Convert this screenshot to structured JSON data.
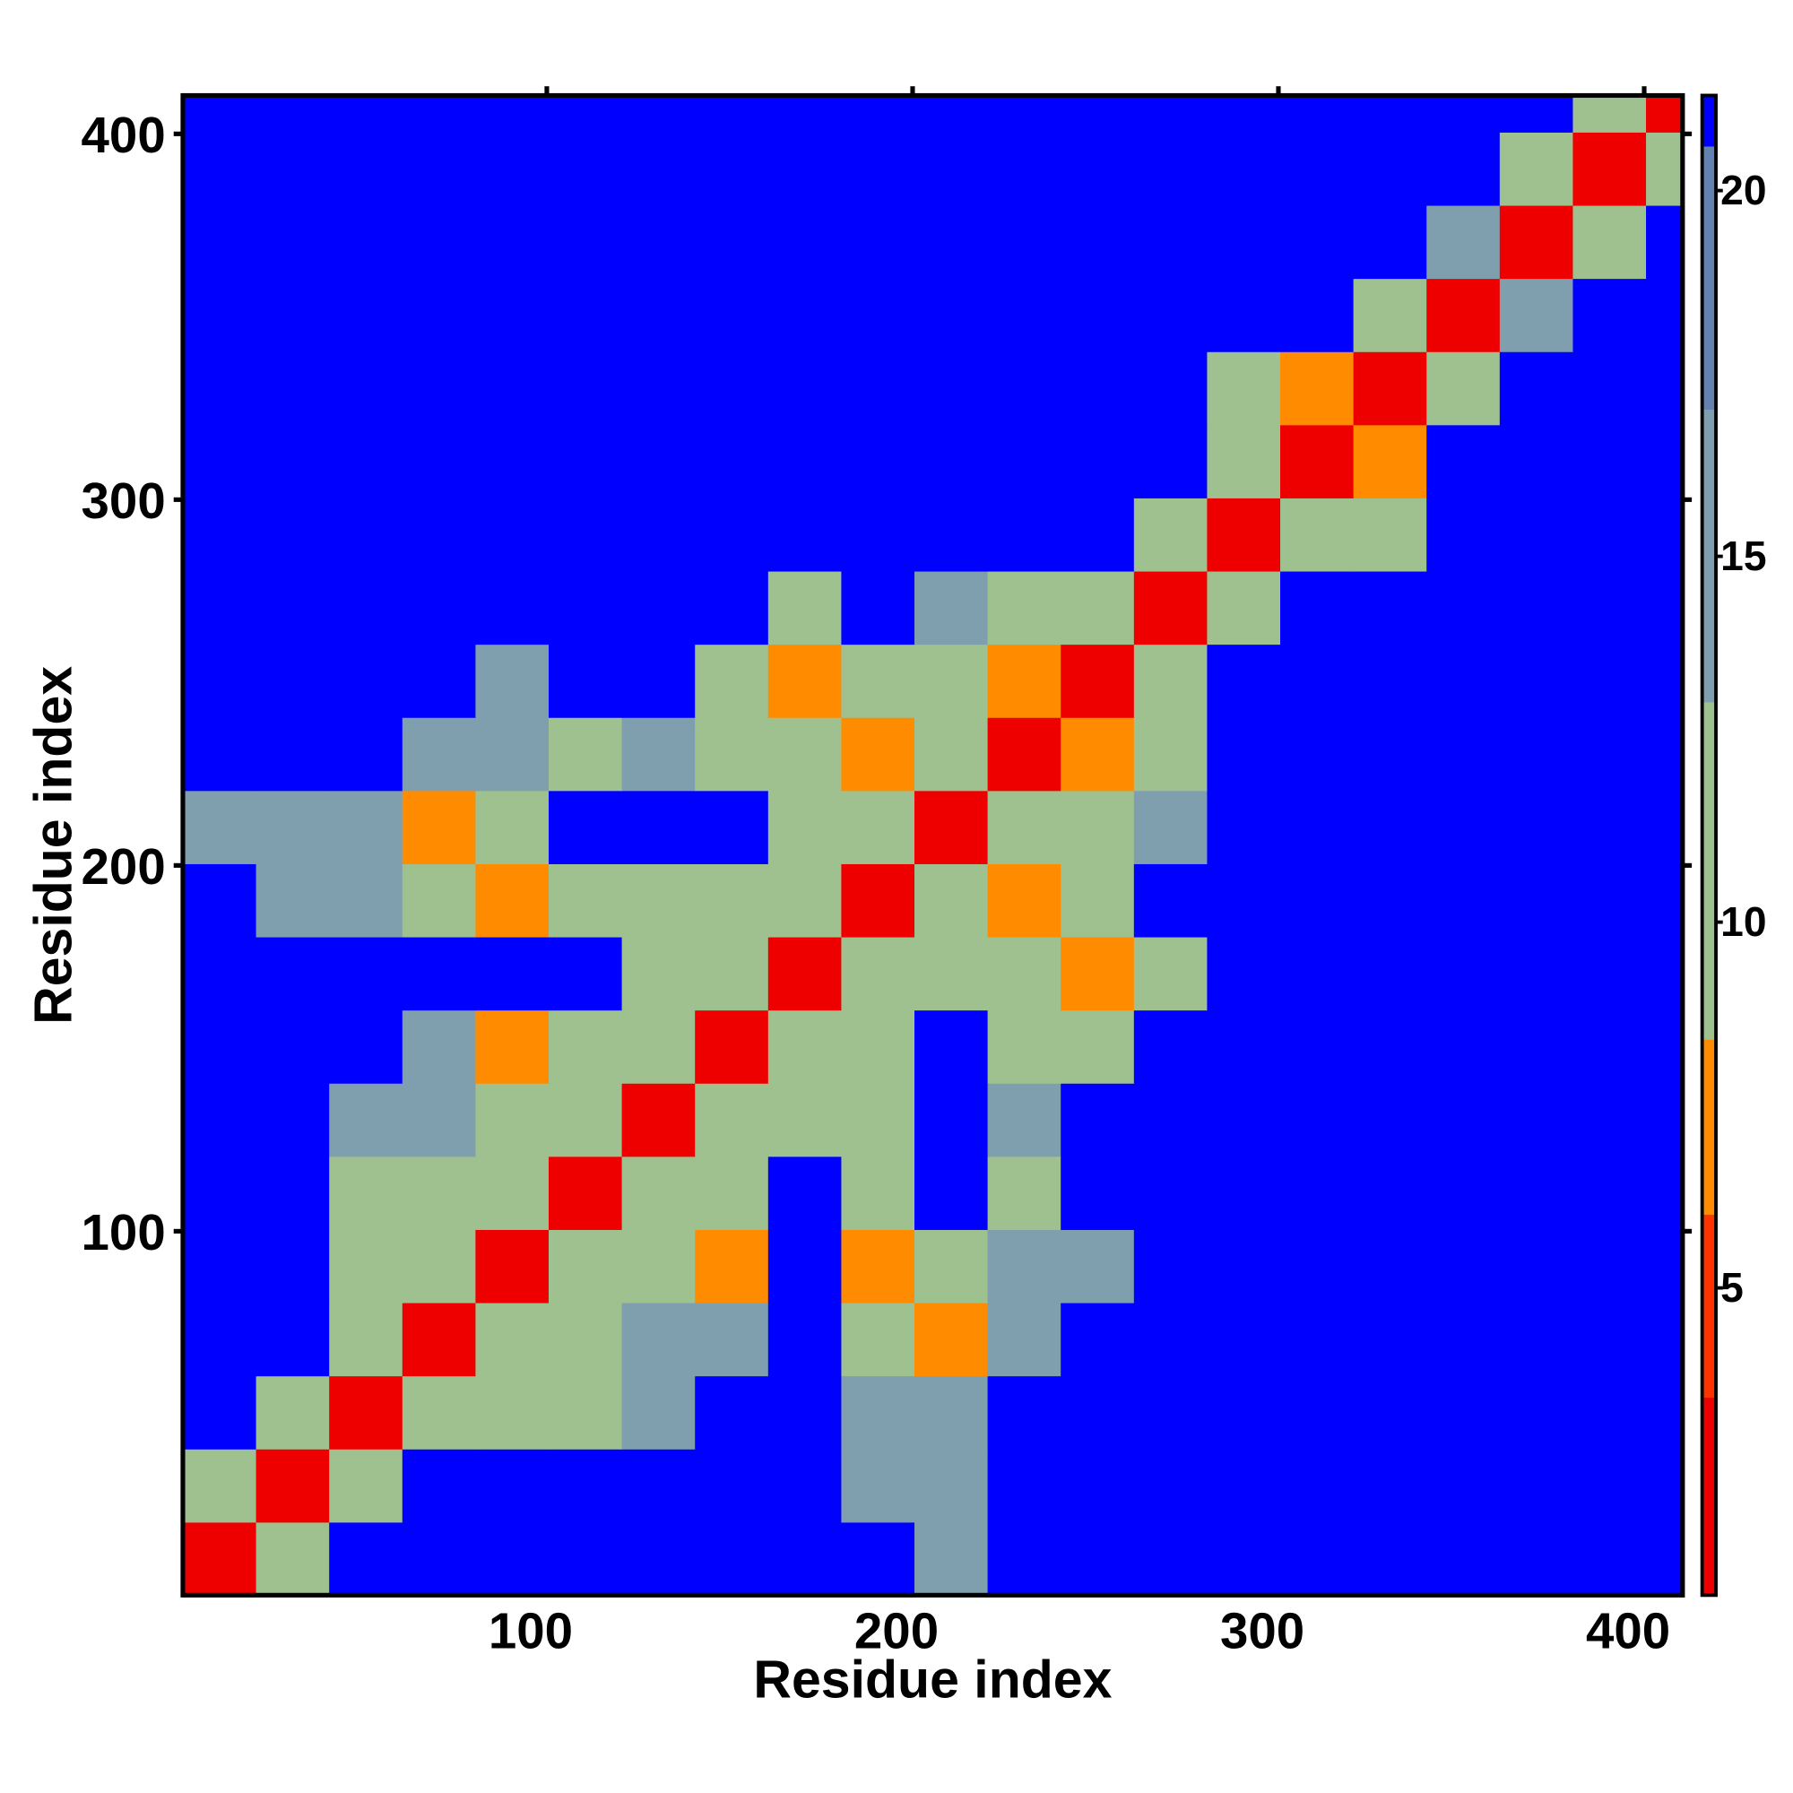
{
  "chart_data": {
    "type": "heatmap",
    "x_label": "Residue index",
    "y_label": "Residue index",
    "xlim": [
      0.5,
      410.5
    ],
    "ylim": [
      0.5,
      410.5
    ],
    "xticks": [
      100,
      200,
      300,
      400
    ],
    "yticks": [
      100,
      200,
      300,
      400
    ],
    "x_edges": [
      0.5,
      20.5,
      40.5,
      60.5,
      80.5,
      100.5,
      120.5,
      140.5,
      160.5,
      180.5,
      200.5,
      220.5,
      240.5,
      260.5,
      280.5,
      300.5,
      320.5,
      340.5,
      360.5,
      380.5,
      400.5,
      410.5
    ],
    "y_edges": [
      0.5,
      20.5,
      40.5,
      60.5,
      80.5,
      100.5,
      120.5,
      140.5,
      160.5,
      180.5,
      200.5,
      220.5,
      240.5,
      260.5,
      280.5,
      300.5,
      320.5,
      340.5,
      360.5,
      380.5,
      400.5,
      410.5
    ],
    "values": [
      [
        3,
        12,
        21,
        21,
        21,
        21,
        21,
        21,
        21,
        21,
        13,
        21,
        21,
        21,
        21,
        21,
        21,
        21,
        21,
        21,
        21
      ],
      [
        12,
        3,
        12,
        21,
        21,
        21,
        21,
        21,
        21,
        14,
        13,
        21,
        21,
        21,
        21,
        21,
        21,
        21,
        21,
        21,
        21
      ],
      [
        21,
        12,
        3,
        12,
        12,
        12,
        14,
        21,
        21,
        14,
        13,
        21,
        21,
        21,
        21,
        21,
        21,
        21,
        21,
        21,
        21
      ],
      [
        21,
        21,
        12,
        3,
        11,
        11,
        14,
        13,
        21,
        12,
        7,
        13,
        21,
        21,
        21,
        21,
        21,
        21,
        21,
        21,
        21
      ],
      [
        21,
        21,
        12,
        11,
        3,
        11,
        11,
        7,
        21,
        7,
        12,
        13,
        13,
        21,
        21,
        21,
        21,
        21,
        21,
        21,
        21
      ],
      [
        21,
        21,
        12,
        11,
        11,
        3,
        11,
        11,
        21,
        12,
        21,
        12,
        21,
        21,
        21,
        21,
        21,
        21,
        21,
        21,
        21
      ],
      [
        21,
        21,
        14,
        14,
        11,
        11,
        3,
        11,
        11,
        12,
        21,
        15,
        21,
        21,
        21,
        21,
        21,
        21,
        21,
        21,
        21
      ],
      [
        21,
        21,
        21,
        13,
        7,
        11,
        11,
        3,
        11,
        11,
        21,
        12,
        12,
        21,
        21,
        21,
        21,
        21,
        21,
        21,
        21
      ],
      [
        21,
        21,
        21,
        21,
        21,
        21,
        11,
        11,
        3,
        11,
        12,
        11,
        7,
        10,
        21,
        21,
        21,
        21,
        21,
        21,
        21
      ],
      [
        21,
        14,
        14,
        12,
        7,
        12,
        12,
        11,
        11,
        3,
        11,
        7,
        11,
        21,
        21,
        21,
        21,
        21,
        21,
        21,
        21
      ],
      [
        13,
        13,
        13,
        7,
        12,
        21,
        21,
        21,
        12,
        11,
        3,
        11,
        12,
        13,
        21,
        21,
        21,
        21,
        21,
        21,
        21
      ],
      [
        21,
        21,
        21,
        13,
        13,
        12,
        15,
        12,
        11,
        7,
        11,
        3,
        7,
        12,
        21,
        21,
        21,
        21,
        21,
        21,
        21
      ],
      [
        21,
        21,
        21,
        21,
        13,
        21,
        21,
        12,
        7,
        11,
        12,
        7,
        3,
        11,
        21,
        21,
        21,
        21,
        21,
        21,
        21
      ],
      [
        21,
        21,
        21,
        21,
        21,
        21,
        21,
        21,
        10,
        21,
        13,
        12,
        11,
        3,
        12,
        21,
        21,
        21,
        21,
        21,
        21
      ],
      [
        21,
        21,
        21,
        21,
        21,
        21,
        21,
        21,
        21,
        21,
        21,
        21,
        21,
        12,
        3,
        10,
        11,
        21,
        21,
        21,
        21
      ],
      [
        21,
        21,
        21,
        21,
        21,
        21,
        21,
        21,
        21,
        21,
        21,
        21,
        21,
        21,
        10,
        3,
        7,
        21,
        21,
        21,
        21
      ],
      [
        21,
        21,
        21,
        21,
        21,
        21,
        21,
        21,
        21,
        21,
        21,
        21,
        21,
        21,
        11,
        7,
        3,
        12,
        21,
        21,
        21
      ],
      [
        21,
        21,
        21,
        21,
        21,
        21,
        21,
        21,
        21,
        21,
        21,
        21,
        21,
        21,
        21,
        21,
        12,
        3,
        13,
        21,
        21
      ],
      [
        21,
        21,
        21,
        21,
        21,
        21,
        21,
        21,
        21,
        21,
        21,
        21,
        21,
        21,
        21,
        21,
        21,
        13,
        3,
        11,
        21
      ],
      [
        21,
        21,
        21,
        21,
        21,
        21,
        21,
        21,
        21,
        21,
        21,
        21,
        21,
        21,
        21,
        21,
        21,
        21,
        11,
        3,
        12
      ],
      [
        21,
        21,
        21,
        21,
        21,
        21,
        21,
        21,
        21,
        21,
        21,
        21,
        21,
        21,
        21,
        21,
        21,
        21,
        21,
        12,
        3
      ]
    ],
    "colorscale": [
      [
        0.8,
        "#ee0000"
      ],
      [
        3.5,
        "#ff3300"
      ],
      [
        6,
        "#ff8c00"
      ],
      [
        8.4,
        "#9fc08f"
      ],
      [
        13,
        "#7f9fae"
      ],
      [
        17,
        "#6482b0"
      ],
      [
        20.6,
        "#0000ff"
      ]
    ],
    "colorbar_lim": [
      0.8,
      21.3
    ],
    "colorbar_ticks": [
      5,
      10,
      15,
      20
    ]
  }
}
